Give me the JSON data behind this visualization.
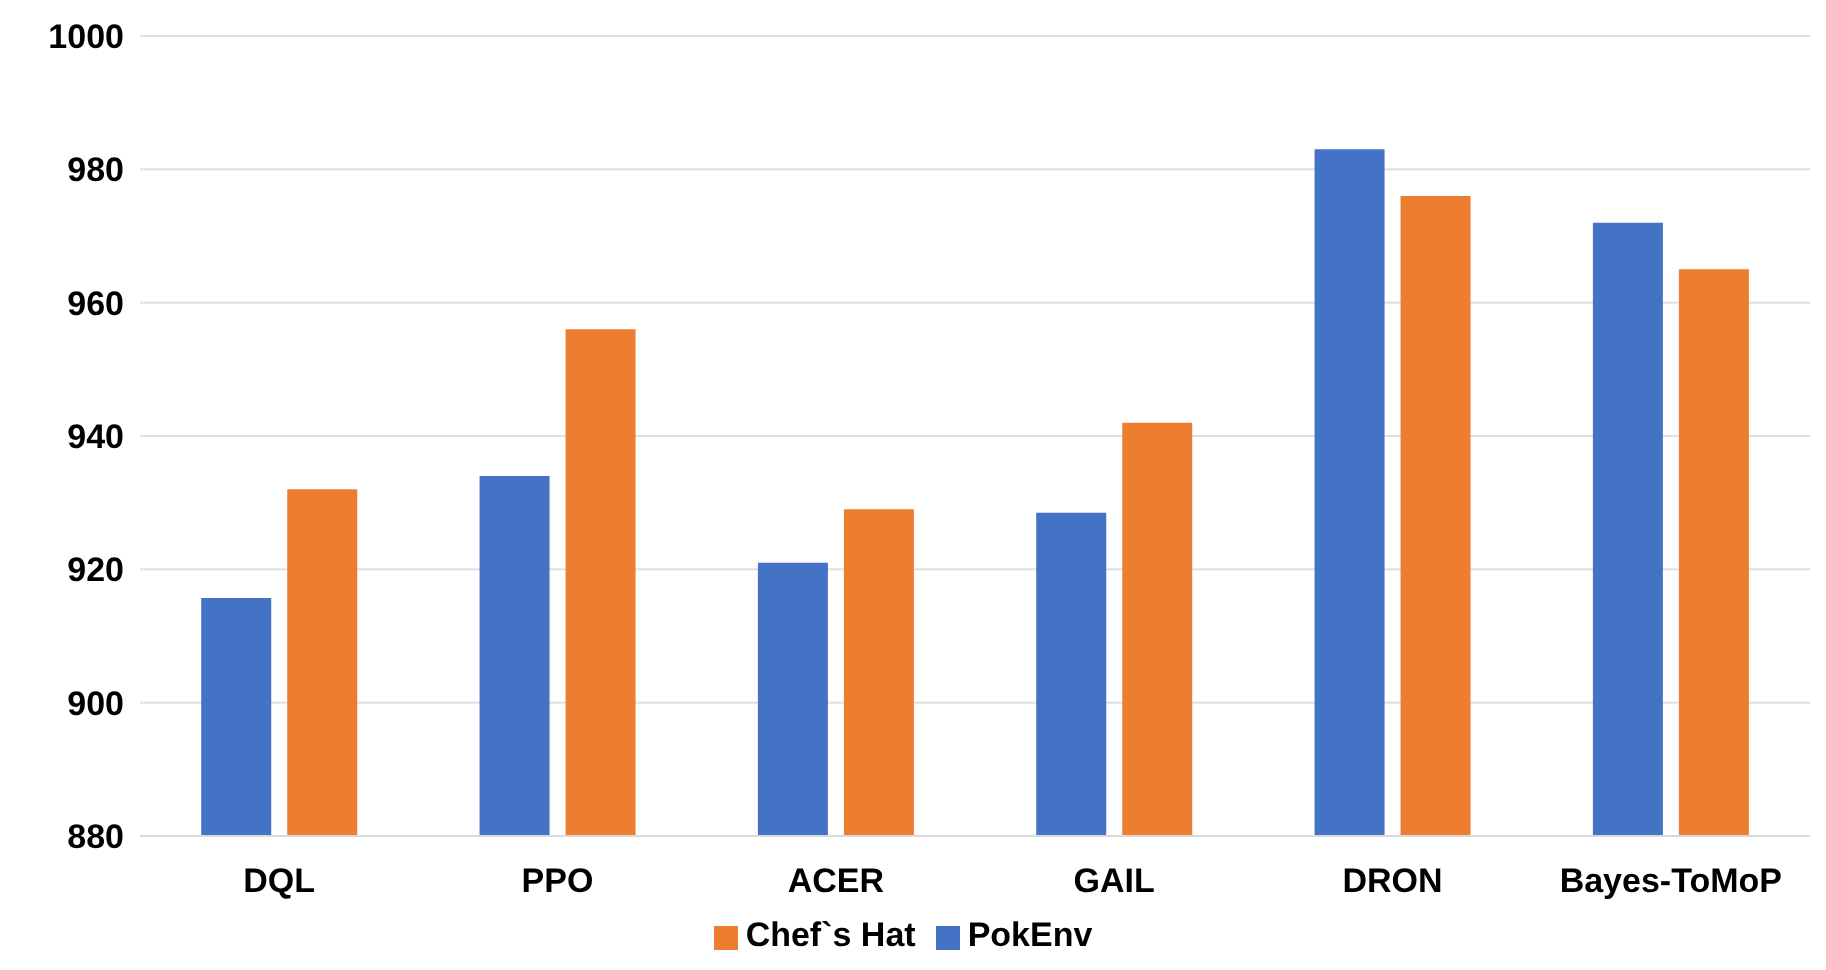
{
  "chart_data": {
    "type": "bar",
    "categories": [
      "DQL",
      "PPO",
      "ACER",
      "GAIL",
      "DRON",
      "Bayes-ToMoP"
    ],
    "series": [
      {
        "name": "PokEnv",
        "color": "#4472c4",
        "values": [
          915.7,
          934,
          921,
          928.5,
          983,
          972
        ]
      },
      {
        "name": "Chef`s Hat",
        "color": "#ed7d31",
        "values": [
          932,
          956,
          929,
          942,
          976,
          965
        ]
      }
    ],
    "ylim": [
      880,
      1000
    ],
    "yticks": [
      880,
      900,
      920,
      940,
      960,
      980,
      1000
    ],
    "grid": "y",
    "legend": "bottom"
  }
}
